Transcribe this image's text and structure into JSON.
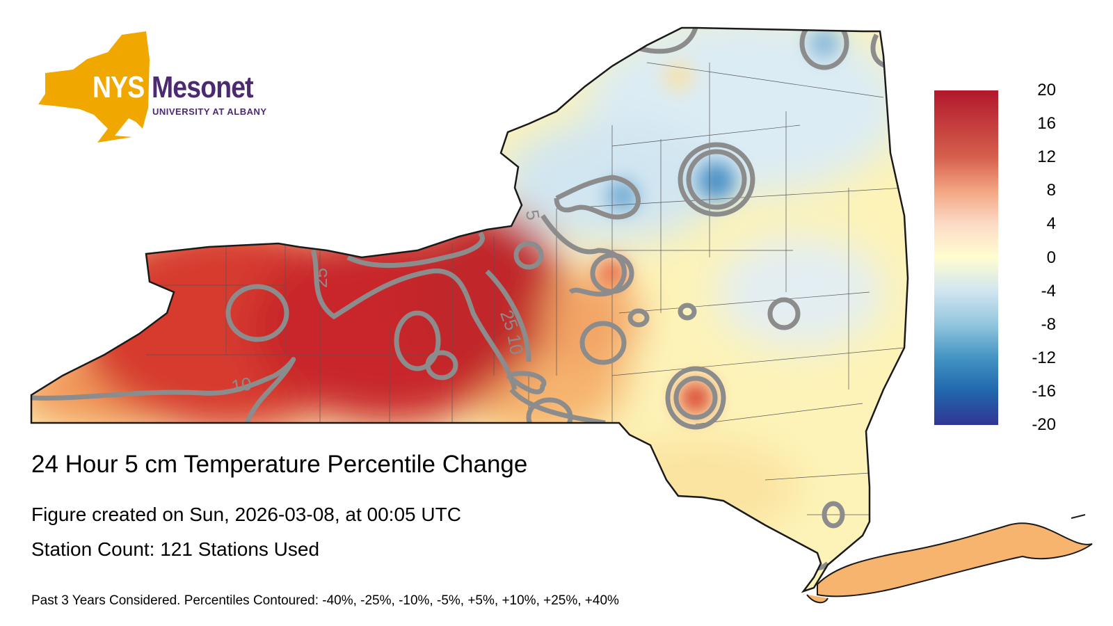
{
  "logo": {
    "word1": "NYS",
    "word2": "Mesonet",
    "subtitle": "UNIVERSITY AT ALBANY",
    "gold": "#f0a800",
    "purple": "#4b2a6f"
  },
  "map": {
    "title": "24 Hour 5 cm Temperature Percentile Change",
    "created": "Figure created on Sun, 2026-03-08, at 00:05 UTC",
    "station_count": "Station Count: 121 Stations Used",
    "footnote": "Past 3 Years Considered. Percentiles Contoured: -40%, -25%, -10%, -5%, +5%, +10%, +25%, +40%",
    "contour_labels": [
      "25",
      "25",
      "10",
      "10",
      "5"
    ],
    "contour_color": "#8c8c8c",
    "fill_colors": {
      "warm_strong": "#c0262b",
      "warm": "#e8603c",
      "warm_light": "#f6b46e",
      "neutral": "#fdf3b8",
      "cool_light": "#dcecf4",
      "cool": "#4a8fc6"
    }
  },
  "legend": {
    "ticks": [
      "20",
      "16",
      "12",
      "8",
      "4",
      "0",
      "-4",
      "-8",
      "-12",
      "-16",
      "-20"
    ],
    "max": 20,
    "min": -20
  }
}
